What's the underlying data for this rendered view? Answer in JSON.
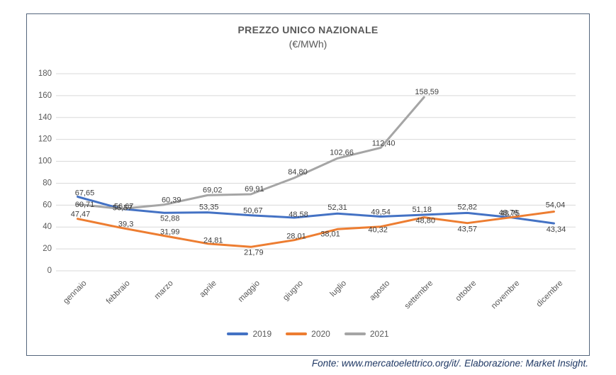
{
  "page": {
    "source_note": "Fonte: www.mercatoelettrico.org/it/. Elaborazione: Market Insight."
  },
  "colors": {
    "series_2019": "#4472C4",
    "series_2020": "#ED7D31",
    "series_2021": "#A5A5A5",
    "gridline": "#D9D9D9",
    "axis_text": "#595959",
    "data_label_text": "#404040",
    "frame_border": "#54657c",
    "source_text": "#1f3864"
  },
  "chart_data": {
    "type": "line",
    "title": "PREZZO UNICO NAZIONALE",
    "subtitle": "(€/MWh)",
    "ylabel": "",
    "xlabel": "",
    "ylim": [
      0,
      180
    ],
    "ytick_step": 20,
    "yticks": [
      0,
      20,
      40,
      60,
      80,
      100,
      120,
      140,
      160,
      180
    ],
    "grid": true,
    "legend_position": "bottom",
    "categories": [
      "gennaio",
      "febbraio",
      "marzo",
      "aprile",
      "maggio",
      "giugno",
      "luglio",
      "agosto",
      "settembre",
      "ottobre",
      "novembre",
      "dicembre"
    ],
    "series": [
      {
        "name": "2019",
        "color": "#4472C4",
        "values": [
          67.65,
          56.67,
          52.88,
          53.35,
          50.67,
          48.58,
          52.31,
          49.54,
          51.18,
          52.82,
          48.76,
          43.34
        ],
        "labels": [
          "67,65",
          "56,67",
          "52,88",
          "53,35",
          "50,67",
          "48,58",
          "52,31",
          "49,54",
          "51,18",
          "52,82",
          "48,76",
          "43,34"
        ],
        "label_dx": [
          10,
          4,
          8,
          2,
          3,
          6,
          0,
          0,
          -3,
          0,
          -3,
          3
        ],
        "label_dy": [
          -5,
          -3,
          8,
          -7,
          -6,
          -4,
          -8,
          -6,
          -7,
          -8,
          -6,
          9
        ]
      },
      {
        "name": "2020",
        "color": "#ED7D31",
        "values": [
          47.47,
          39.3,
          31.99,
          24.81,
          21.79,
          28.01,
          38.01,
          40.32,
          48.8,
          43.57,
          48.75,
          54.04
        ],
        "labels": [
          "47,47",
          "39,3",
          "31,99",
          "24,81",
          "21,79",
          "28,01",
          "38,01",
          "40,32",
          "48,80",
          "43,57",
          "48,75",
          "54,04"
        ],
        "label_dx": [
          4,
          7,
          8,
          8,
          4,
          3,
          -10,
          -4,
          2,
          0,
          -1,
          2
        ],
        "label_dy": [
          -6,
          -5,
          -5,
          -4,
          8,
          -5,
          7,
          5,
          5,
          9,
          -5,
          -9
        ]
      },
      {
        "name": "2021",
        "color": "#A5A5A5",
        "values": [
          60.71,
          56.57,
          60.39,
          69.02,
          69.91,
          84.8,
          102.66,
          112.4,
          158.59,
          null,
          null,
          null
        ],
        "labels": [
          "60,71",
          "56,57",
          "60,39",
          "69,02",
          "69,91",
          "84,80",
          "102,66",
          "112,40",
          "158,59",
          "",
          "",
          ""
        ],
        "label_dx": [
          10,
          2,
          10,
          7,
          5,
          5,
          6,
          4,
          4,
          0,
          0,
          0
        ],
        "label_dy": [
          1,
          -1,
          -6,
          -7,
          -7,
          -8,
          -8,
          -6,
          -7,
          0,
          0,
          0
        ]
      }
    ]
  }
}
